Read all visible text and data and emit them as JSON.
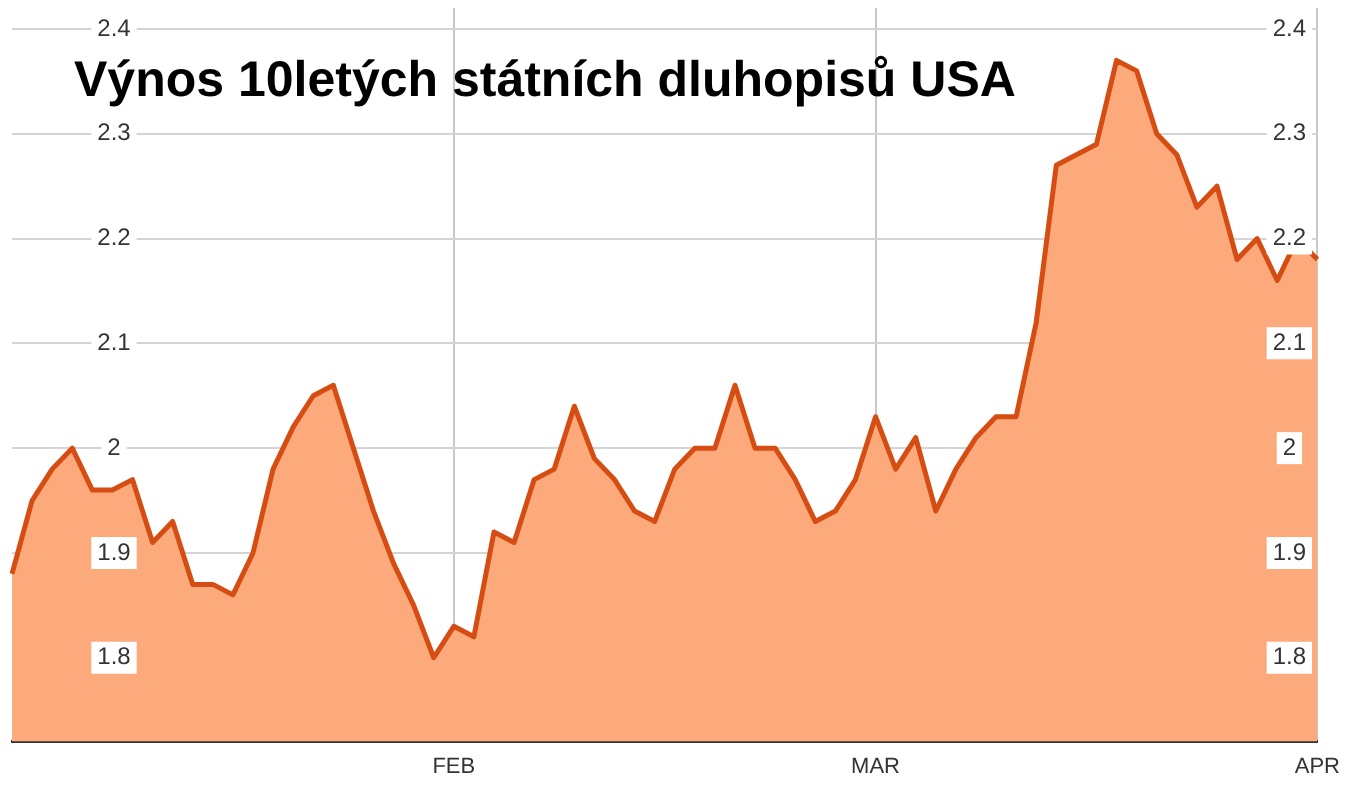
{
  "chart_data": {
    "type": "area",
    "title": "Výnos 10letých státních dluhopisů USA",
    "categories": [
      null,
      null,
      null,
      null,
      null,
      null,
      null,
      null,
      null,
      null,
      null,
      null,
      null,
      null,
      null,
      null,
      null,
      null,
      null,
      null,
      null,
      null,
      "FEB",
      null,
      null,
      null,
      null,
      null,
      null,
      null,
      null,
      null,
      null,
      null,
      null,
      null,
      null,
      null,
      null,
      null,
      null,
      null,
      null,
      "MAR",
      null,
      null,
      null,
      null,
      null,
      null,
      null,
      null,
      null,
      null,
      null,
      null,
      null,
      null,
      null,
      null,
      null,
      null,
      null,
      null,
      null,
      "APR"
    ],
    "series": [
      {
        "color": "#fcaa7c",
        "values": [
          1.88,
          1.95,
          1.98,
          2.0,
          1.96,
          1.96,
          1.97,
          1.91,
          1.93,
          1.87,
          1.87,
          1.86,
          1.9,
          1.98,
          2.02,
          2.05,
          2.06,
          2.0,
          1.94,
          1.89,
          1.85,
          1.8,
          1.83,
          1.82,
          1.92,
          1.91,
          1.97,
          1.98,
          2.04,
          1.99,
          1.97,
          1.94,
          1.93,
          1.98,
          2.0,
          2.0,
          2.06,
          2.0,
          2.0,
          1.97,
          1.93,
          1.94,
          1.97,
          2.03,
          1.98,
          2.01,
          1.94,
          1.98,
          2.01,
          2.03,
          2.03,
          2.12,
          2.27,
          2.28,
          2.29,
          2.37,
          2.36,
          2.3,
          2.28,
          2.23,
          2.25,
          2.18,
          2.2,
          2.16,
          2.2,
          2.18
        ]
      }
    ],
    "ylim": [
      1.72,
      2.42
    ],
    "yticks": [
      1.8,
      1.9,
      2,
      2.1,
      2.2,
      2.3,
      2.4
    ],
    "y2lim": [
      1.72,
      2.42
    ],
    "y2ticks": [
      1.8,
      1.9,
      2,
      2.1,
      2.2,
      2.3,
      2.4
    ],
    "grid": true,
    "marker": "none"
  }
}
